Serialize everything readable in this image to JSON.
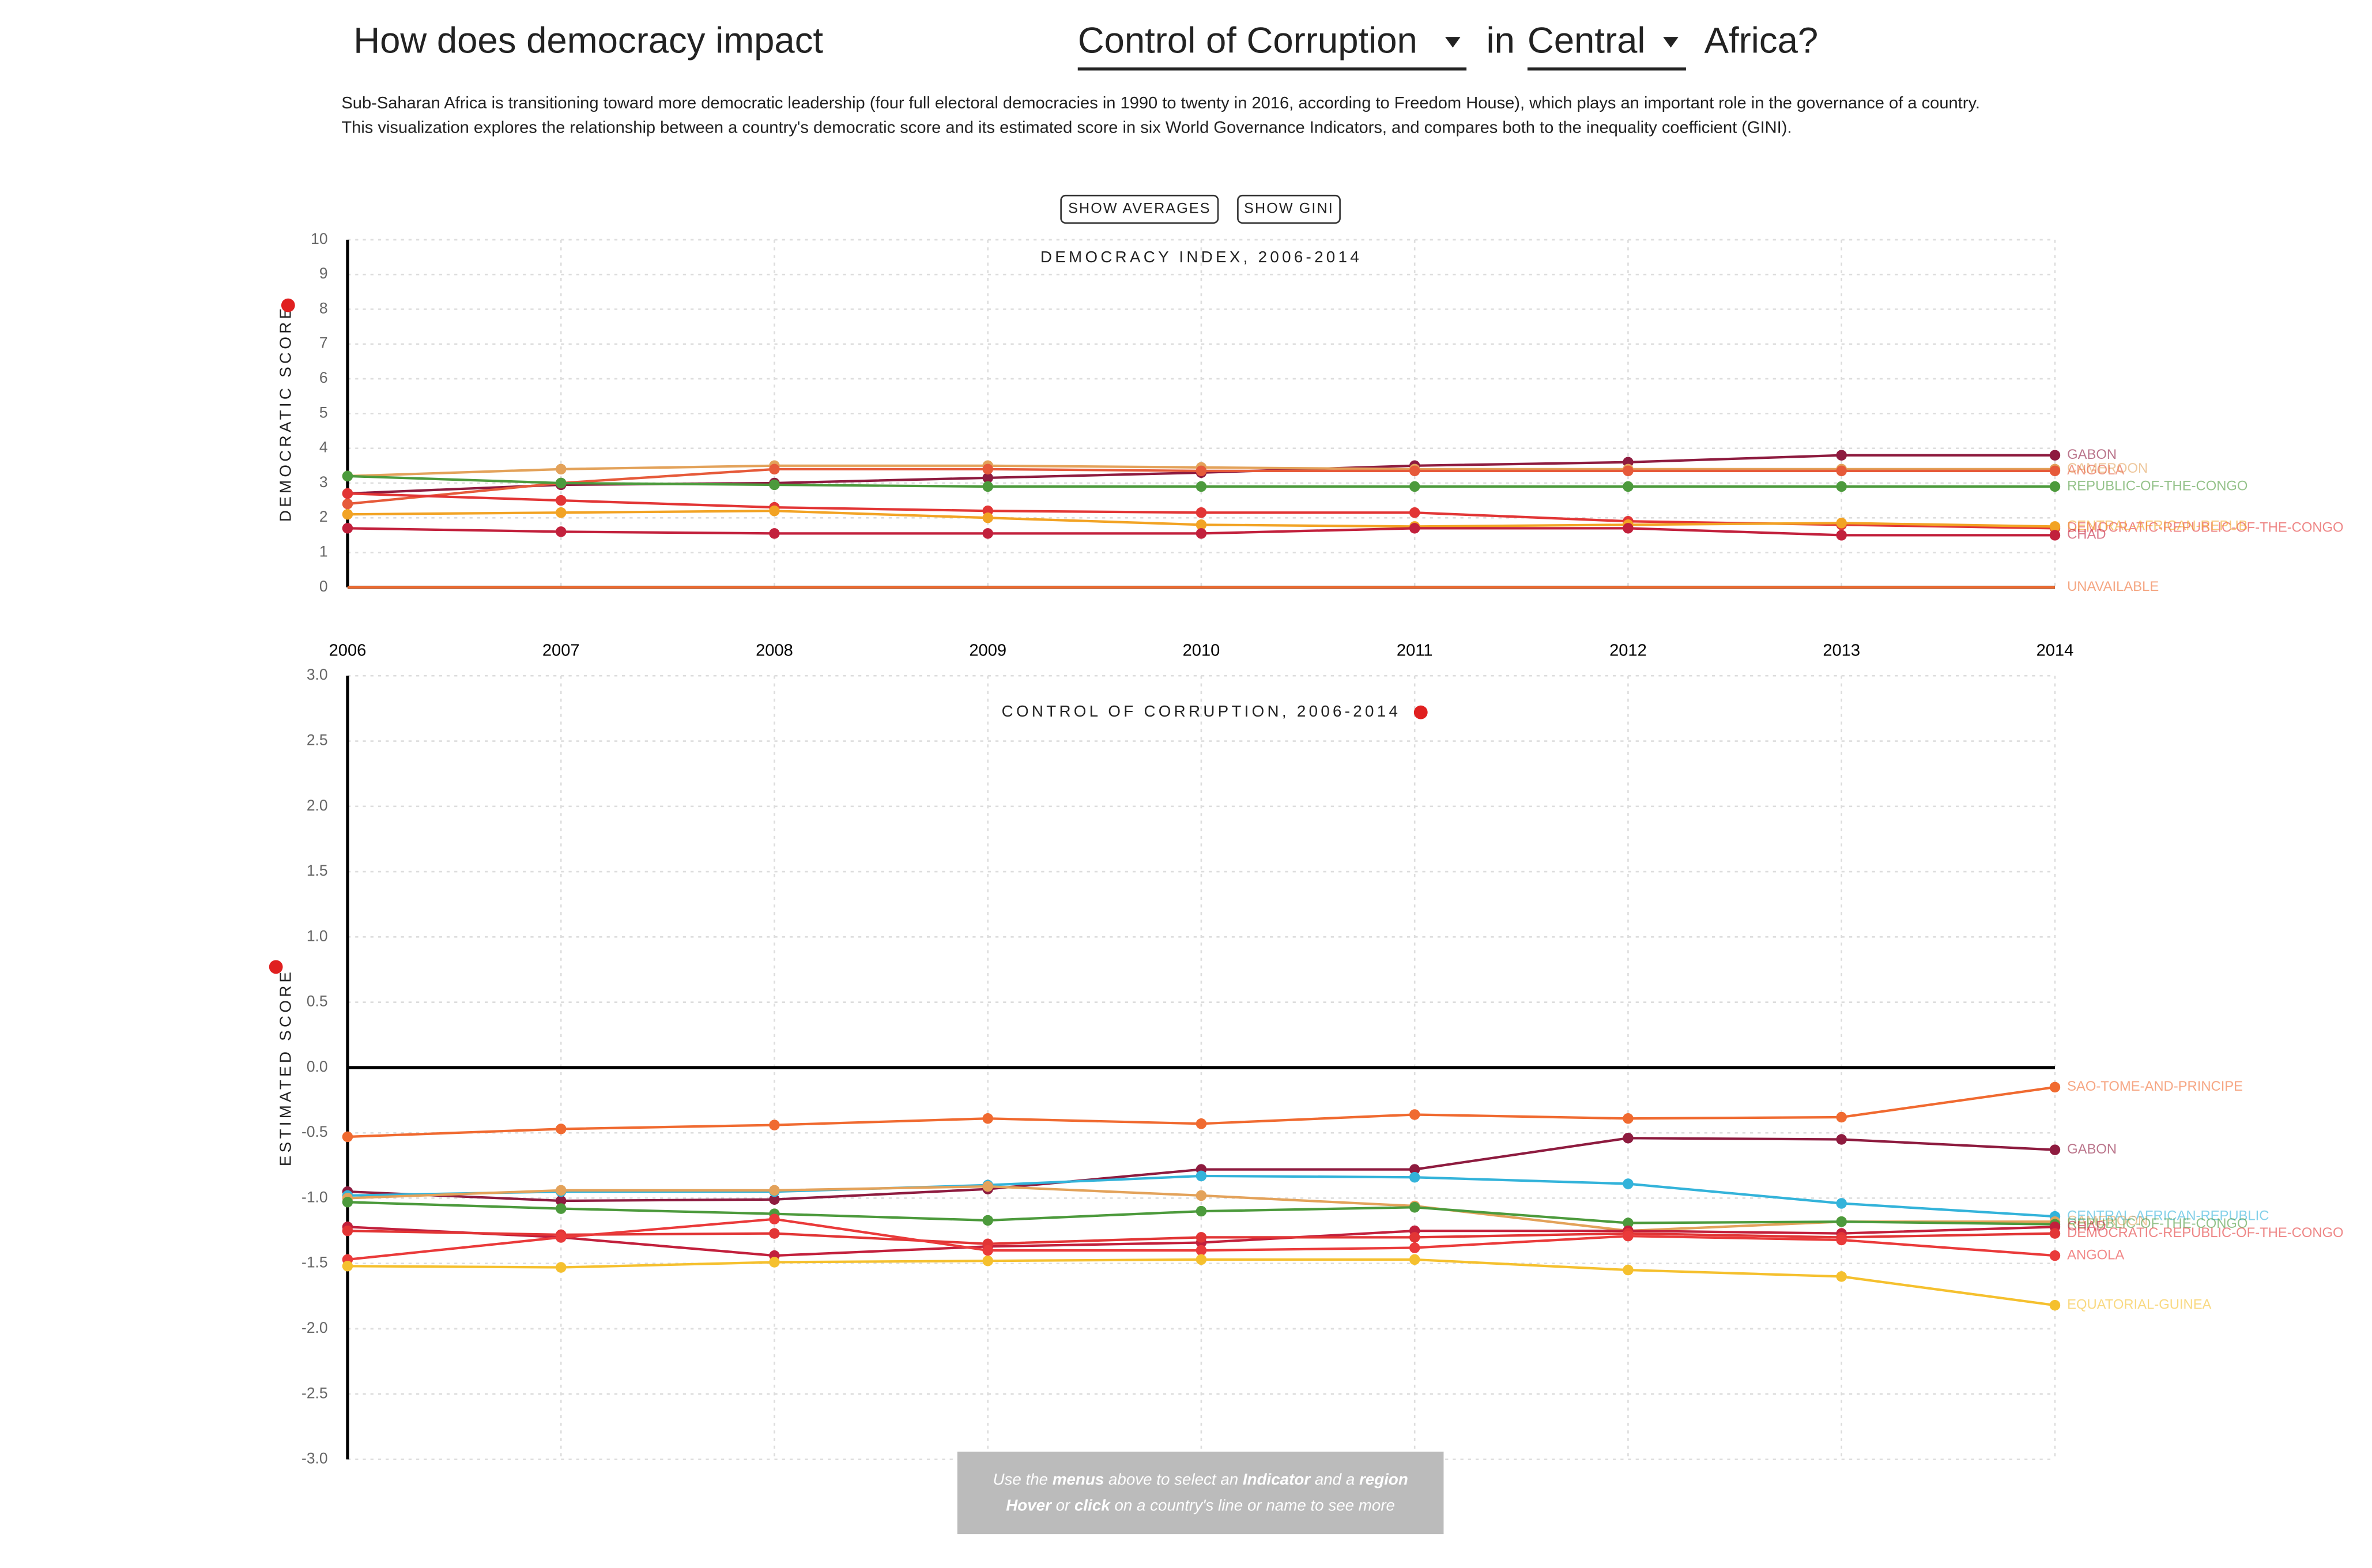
{
  "header": {
    "title_start": "How does democracy impact",
    "indicator": "Control of Corruption",
    "title_middle": "in",
    "region": "Central",
    "title_end": "Africa?"
  },
  "description": [
    "Sub-Saharan Africa is transitioning toward more democratic leadership (four full electoral democracies in 1990 to twenty in 2016, according to Freedom House), which plays an important role in the governance of a country.",
    "This visualization explores the relationship between a country's democratic score and its estimated score in six World Governance Indicators, and compares both to the inequality coefficient (GINI)."
  ],
  "buttons": [
    "SHOW AVERAGES",
    "SHOW GINI"
  ],
  "hint": {
    "line1": [
      "Use the ",
      "menus",
      " above to select an ",
      "Indicator",
      " and a ",
      "region"
    ],
    "line2": [
      "Hover",
      " or ",
      "click",
      " on a country's line or name to see more"
    ]
  },
  "chart_data": [
    {
      "type": "line",
      "title": "DEMOCRACY INDEX, 2006-2014",
      "ylabel": "DEMOCRATIC SCORE",
      "x": [
        2006,
        2007,
        2008,
        2009,
        2010,
        2011,
        2012,
        2013,
        2014
      ],
      "xlim": [
        2006,
        2014
      ],
      "ylim": [
        0,
        10
      ],
      "yticks": [
        0,
        1,
        2,
        3,
        4,
        5,
        6,
        7,
        8,
        9,
        10
      ],
      "grid": true,
      "series": [
        {
          "name": "GABON",
          "color": "#8e1b3f",
          "values": [
            2.7,
            2.95,
            3.0,
            3.15,
            3.3,
            3.5,
            3.6,
            3.8,
            3.8
          ]
        },
        {
          "name": "CAMEROON",
          "color": "#e3a25a",
          "values": [
            3.2,
            3.4,
            3.5,
            3.5,
            3.45,
            3.4,
            3.4,
            3.4,
            3.4
          ]
        },
        {
          "name": "ANGOLA",
          "color": "#e65a3a",
          "values": [
            2.4,
            3.0,
            3.4,
            3.4,
            3.35,
            3.35,
            3.35,
            3.35,
            3.35
          ]
        },
        {
          "name": "REPUBLIC-OF-THE-CONGO",
          "color": "#4c9a3c",
          "values": [
            3.2,
            3.0,
            2.95,
            2.9,
            2.9,
            2.9,
            2.9,
            2.9,
            2.9
          ]
        },
        {
          "name": "DEMOCRATIC-REPUBLIC-OF-THE-CONGO",
          "color": "#e23535",
          "values": [
            2.7,
            2.5,
            2.3,
            2.2,
            2.15,
            2.15,
            1.9,
            1.8,
            1.7
          ]
        },
        {
          "name": "CENTRAL-AFRICAN-REPUB",
          "color": "#f2a324",
          "values": [
            2.1,
            2.15,
            2.2,
            2.0,
            1.8,
            1.75,
            1.8,
            1.85,
            1.75
          ]
        },
        {
          "name": "CHAD",
          "color": "#c2203c",
          "values": [
            1.7,
            1.6,
            1.55,
            1.55,
            1.55,
            1.7,
            1.7,
            1.5,
            1.5
          ]
        },
        {
          "name": "UNAVAILABLE",
          "color": "#ee6a2e",
          "values": [
            0,
            0,
            0,
            0,
            0,
            0,
            0,
            0,
            0
          ]
        }
      ]
    },
    {
      "type": "line",
      "title": "CONTROL OF CORRUPTION, 2006-2014",
      "ylabel": "ESTIMATED SCORE",
      "ylim": [
        -3,
        3
      ],
      "yticks": [
        {
          "value": -3,
          "label": "-3.0"
        },
        -2.5,
        {
          "value": -2,
          "label": "-2.0"
        },
        -1.5,
        {
          "value": -1,
          "label": "-1.0"
        },
        -0.5,
        {
          "value": 0,
          "label": "0.0"
        },
        0.5,
        {
          "value": 1,
          "label": "1.0"
        },
        1.5,
        {
          "value": 2,
          "label": "2.0"
        },
        2.5,
        {
          "value": 3,
          "label": "3.0"
        }
      ],
      "grid": true,
      "series": [
        {
          "name": "SAO-TOME-AND-PRINCIPE",
          "color": "#f06a30",
          "values": [
            -0.53,
            -0.47,
            -0.44,
            -0.39,
            -0.43,
            -0.36,
            -0.39,
            -0.38,
            -0.15
          ]
        },
        {
          "name": "GABON",
          "color": "#8e1b3f",
          "values": [
            -0.95,
            -1.02,
            -1.01,
            -0.93,
            -0.78,
            -0.78,
            -0.54,
            -0.55,
            -0.63
          ]
        },
        {
          "name": "CENTRAL-AFRICAN-REPUBLIC",
          "color": "#33b3da",
          "values": [
            -0.98,
            -0.95,
            -0.95,
            -0.9,
            -0.83,
            -0.84,
            -0.89,
            -1.04,
            -1.14
          ]
        },
        {
          "name": "CAMEROON",
          "color": "#e3a25a",
          "values": [
            -1.0,
            -0.94,
            -0.94,
            -0.91,
            -0.98,
            -1.06,
            -1.25,
            -1.18,
            -1.18
          ]
        },
        {
          "name": "REPUBLIC-OF-THE-CONGO",
          "color": "#4c9a3c",
          "values": [
            -1.03,
            -1.08,
            -1.12,
            -1.17,
            -1.1,
            -1.07,
            -1.19,
            -1.18,
            -1.2
          ]
        },
        {
          "name": "CHAD",
          "color": "#c2203c",
          "values": [
            -1.22,
            -1.3,
            -1.44,
            -1.37,
            -1.34,
            -1.25,
            -1.25,
            -1.27,
            -1.22
          ]
        },
        {
          "name": "DEMOCRATIC-REPUBLIC-OF-THE-CONGO",
          "color": "#e23535",
          "values": [
            -1.25,
            -1.28,
            -1.27,
            -1.35,
            -1.3,
            -1.3,
            -1.27,
            -1.3,
            -1.27
          ]
        },
        {
          "name": "ANGOLA",
          "color": "#ea3a3a",
          "values": [
            -1.47,
            -1.3,
            -1.16,
            -1.4,
            -1.4,
            -1.38,
            -1.29,
            -1.32,
            -1.44
          ]
        },
        {
          "name": "EQUATORIAL-GUINEA",
          "color": "#f5c02e",
          "values": [
            -1.52,
            -1.53,
            -1.49,
            -1.48,
            -1.47,
            -1.47,
            -1.55,
            -1.6,
            -1.82
          ]
        }
      ]
    }
  ]
}
